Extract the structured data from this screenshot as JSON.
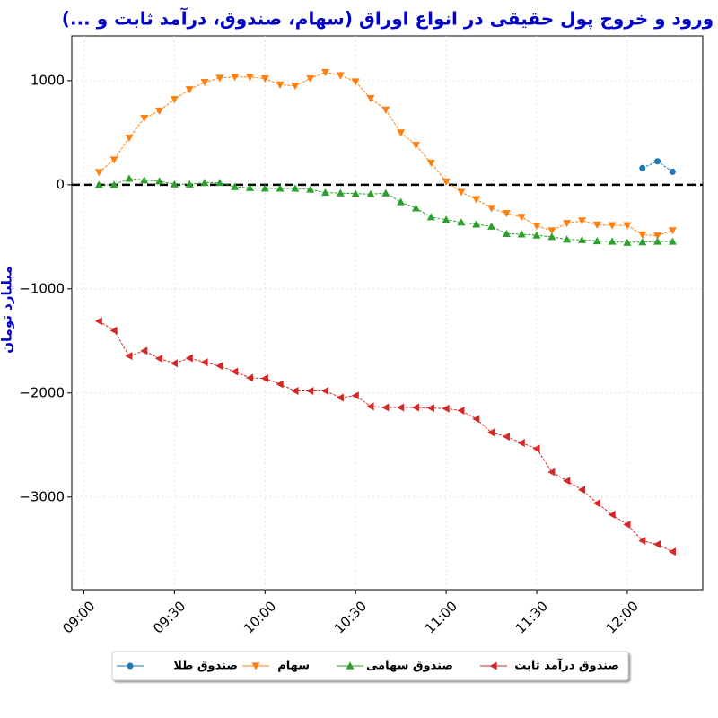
{
  "chart_data": {
    "type": "line",
    "title": "ورود و خروج پول حقیقی در انواع اوراق (سهام، صندوق، درآمد ثابت و ...)",
    "y_label": "میلیارد تومان",
    "x": [
      "09:05",
      "09:10",
      "09:15",
      "09:20",
      "09:25",
      "09:30",
      "09:35",
      "09:40",
      "09:45",
      "09:50",
      "09:55",
      "10:00",
      "10:05",
      "10:10",
      "10:15",
      "10:20",
      "10:25",
      "10:30",
      "10:35",
      "10:40",
      "10:45",
      "10:50",
      "10:55",
      "11:00",
      "11:05",
      "11:10",
      "11:15",
      "11:20",
      "11:25",
      "11:30",
      "11:35",
      "11:40",
      "11:45",
      "11:50",
      "11:55",
      "12:00",
      "12:05",
      "12:10",
      "12:15"
    ],
    "series": [
      {
        "name": "صندوق طلا",
        "color": "#1f77b4",
        "marker": "circle",
        "values": [
          null,
          null,
          null,
          null,
          null,
          null,
          null,
          null,
          null,
          null,
          null,
          null,
          null,
          null,
          null,
          null,
          null,
          null,
          null,
          null,
          null,
          null,
          null,
          null,
          null,
          null,
          null,
          null,
          null,
          null,
          null,
          null,
          null,
          null,
          null,
          null,
          160,
          225,
          125
        ]
      },
      {
        "name": "سهام",
        "color": "#ff7f0e",
        "marker": "triangle-down",
        "values": [
          120,
          240,
          450,
          640,
          710,
          820,
          915,
          985,
          1025,
          1035,
          1035,
          1020,
          960,
          950,
          1020,
          1080,
          1050,
          990,
          830,
          720,
          500,
          380,
          210,
          30,
          -70,
          -140,
          -225,
          -275,
          -310,
          -395,
          -440,
          -370,
          -345,
          -385,
          -390,
          -390,
          -480,
          -490,
          -440
        ]
      },
      {
        "name": "صندوق سهامی",
        "color": "#2ca02c",
        "marker": "triangle-up",
        "values": [
          0,
          0,
          60,
          45,
          35,
          5,
          5,
          20,
          20,
          -20,
          -30,
          -35,
          -35,
          -35,
          -45,
          -75,
          -80,
          -85,
          -90,
          -80,
          -165,
          -225,
          -310,
          -335,
          -360,
          -380,
          -400,
          -470,
          -475,
          -485,
          -500,
          -525,
          -530,
          -540,
          -545,
          -555,
          -550,
          -545,
          -545
        ]
      },
      {
        "name": "صندوق درآمد ثابت",
        "color": "#d62728",
        "marker": "triangle-left",
        "values": [
          -1310,
          -1400,
          -1645,
          -1595,
          -1670,
          -1715,
          -1665,
          -1705,
          -1740,
          -1795,
          -1855,
          -1860,
          -1915,
          -1980,
          -1980,
          -1980,
          -2045,
          -2025,
          -2130,
          -2140,
          -2140,
          -2140,
          -2145,
          -2150,
          -2170,
          -2250,
          -2380,
          -2420,
          -2480,
          -2535,
          -2760,
          -2845,
          -2930,
          -3060,
          -3170,
          -3265,
          -3420,
          -3455,
          -3525
        ]
      }
    ],
    "xlim": [
      "08:56",
      "12:25"
    ],
    "xticks": [
      "09:00",
      "09:30",
      "10:00",
      "10:30",
      "11:00",
      "11:30",
      "12:00"
    ],
    "ylim": [
      -3890,
      1430
    ],
    "yticks": [
      {
        "value": -3000,
        "label": "−3000"
      },
      {
        "value": -2000,
        "label": "−2000"
      },
      {
        "value": -1000,
        "label": "−1000"
      },
      0,
      1000
    ],
    "reference_line": 0,
    "grid": true,
    "legend": "bottom"
  }
}
